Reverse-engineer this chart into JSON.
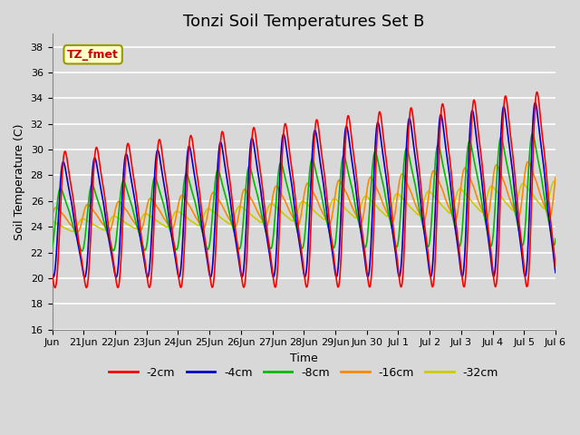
{
  "title": "Tonzi Soil Temperatures Set B",
  "xlabel": "Time",
  "ylabel": "Soil Temperature (C)",
  "ylim": [
    16,
    39
  ],
  "yticks": [
    16,
    18,
    20,
    22,
    24,
    26,
    28,
    30,
    32,
    34,
    36,
    38
  ],
  "xlim_start": 0,
  "xlim_end": 16.0,
  "xtick_positions": [
    0,
    1,
    2,
    3,
    4,
    5,
    6,
    7,
    8,
    9,
    10,
    11,
    12,
    13,
    14,
    15,
    16
  ],
  "xtick_labels": [
    "Jun",
    "21Jun",
    "22Jun",
    "23Jun",
    "24Jun",
    "25Jun",
    "26Jun",
    "27Jun",
    "28Jun",
    "29Jun",
    "Jun 30",
    "Jul 1",
    "Jul 2",
    "Jul 3",
    "Jul 4",
    "Jul 5",
    "Jul 6"
  ],
  "legend_label_box": "TZ_fmet",
  "series_colors": [
    "#ff0000",
    "#0000cc",
    "#00bb00",
    "#ff8800",
    "#cccc00"
  ],
  "series_labels": [
    "-2cm",
    "-4cm",
    "-8cm",
    "-16cm",
    "-32cm"
  ],
  "background_color": "#d8d8d8",
  "plot_bg_color": "#d8d8d8",
  "grid_color": "#ffffff",
  "title_fontsize": 13,
  "axis_fontsize": 9,
  "tick_fontsize": 8,
  "legend_fontsize": 9,
  "line_width": 1.2
}
